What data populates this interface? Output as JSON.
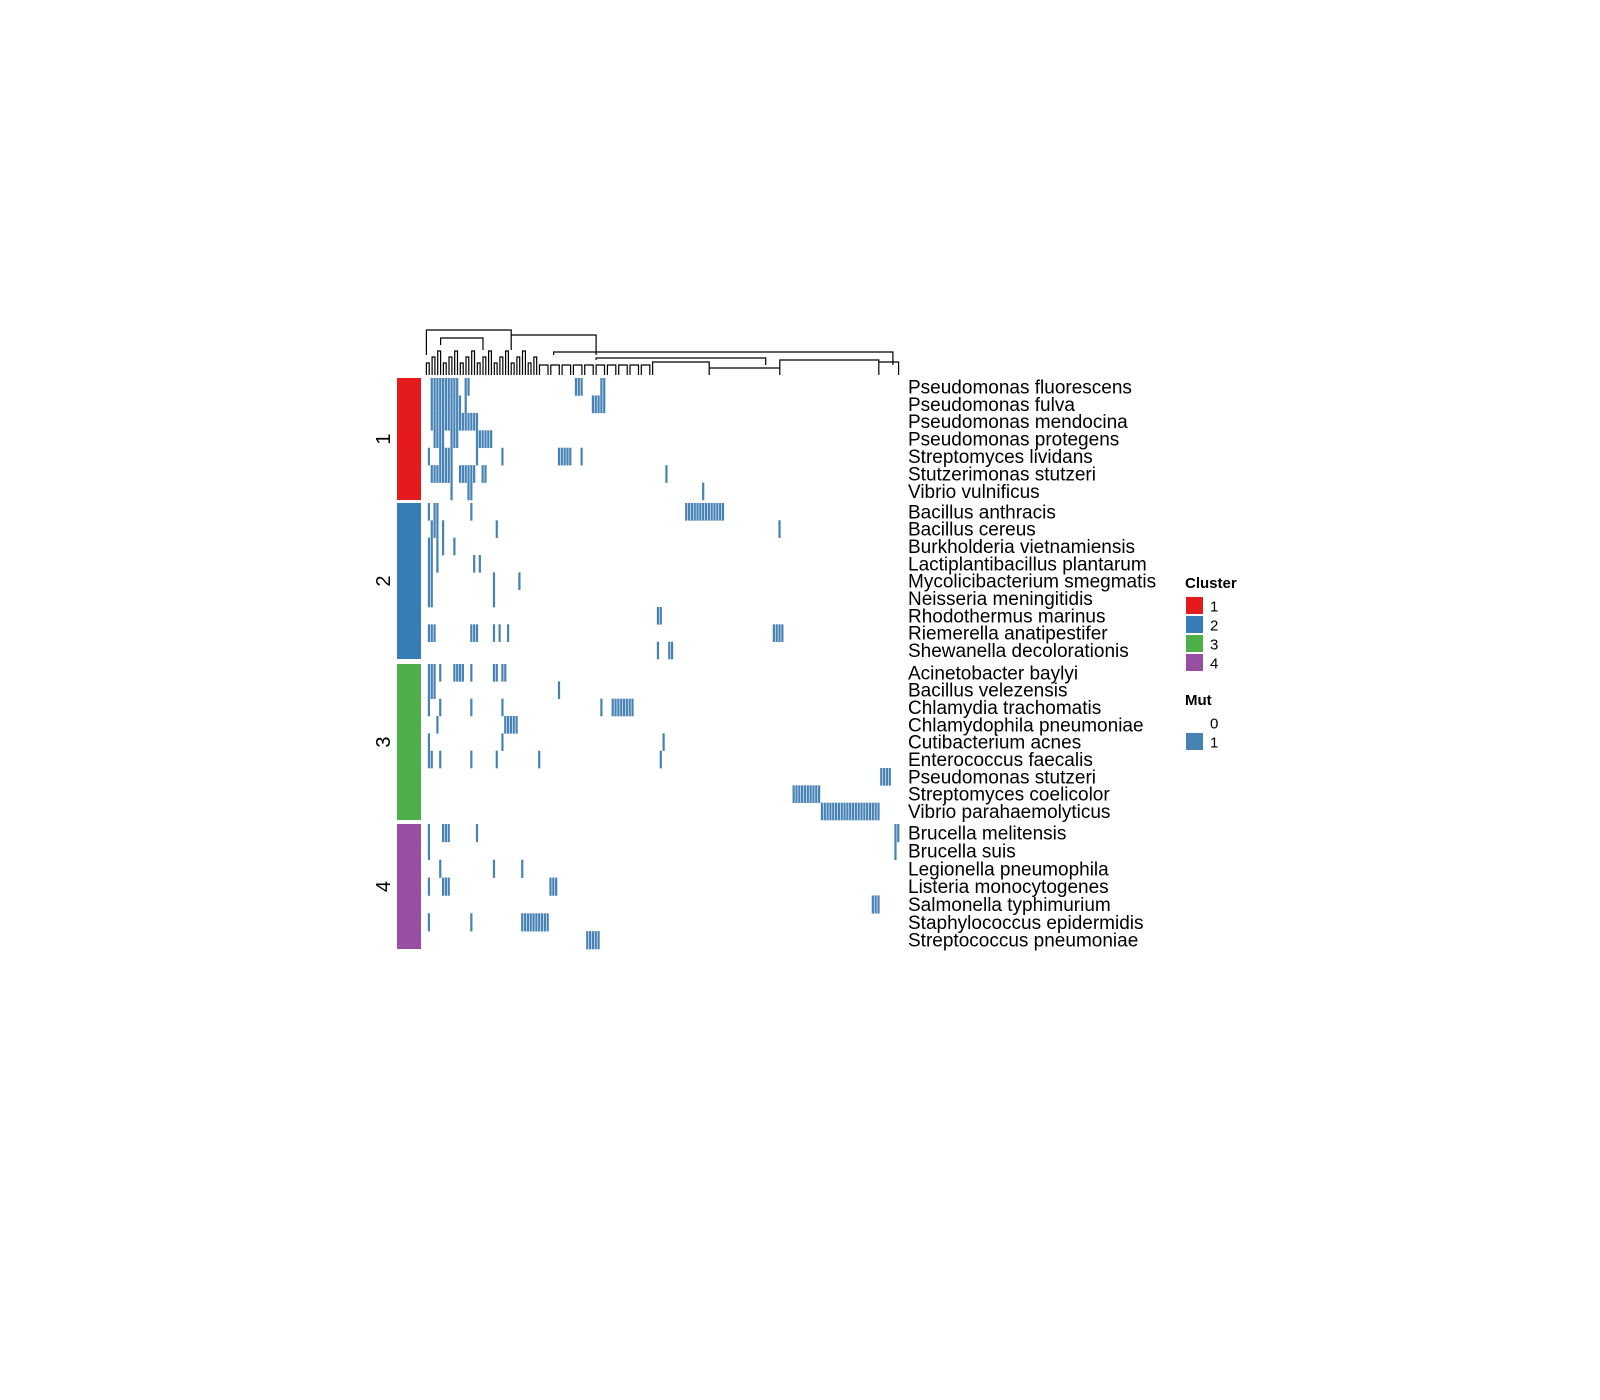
{
  "chart_data": {
    "type": "heatmap",
    "rows": [
      {
        "name": "Pseudomonas fluorescens",
        "cluster": 1,
        "cells": [
          2,
          3,
          4,
          5,
          6,
          7,
          8,
          9,
          10,
          11,
          14,
          15,
          53,
          54,
          55,
          62,
          63
        ]
      },
      {
        "name": "Pseudomonas fulva",
        "cluster": 1,
        "cells": [
          2,
          3,
          4,
          5,
          6,
          7,
          8,
          9,
          10,
          11,
          12,
          14,
          59,
          60,
          61,
          62,
          63
        ]
      },
      {
        "name": "Pseudomonas mendocina",
        "cluster": 1,
        "cells": [
          2,
          3,
          4,
          5,
          6,
          7,
          8,
          9,
          10,
          11,
          12,
          13,
          14,
          15,
          16,
          17,
          18
        ]
      },
      {
        "name": "Pseudomonas protegens",
        "cluster": 1,
        "cells": [
          3,
          4,
          5,
          6,
          9,
          10,
          11,
          18,
          19,
          20,
          21,
          22,
          23
        ]
      },
      {
        "name": "Streptomyces lividans",
        "cluster": 1,
        "cells": [
          1,
          5,
          6,
          7,
          8,
          9,
          18,
          27,
          47,
          48,
          49,
          50,
          51,
          55
        ]
      },
      {
        "name": "Stutzerimonas stutzeri",
        "cluster": 1,
        "cells": [
          2,
          3,
          4,
          5,
          6,
          7,
          8,
          9,
          12,
          13,
          14,
          15,
          16,
          17,
          20,
          21,
          85
        ]
      },
      {
        "name": "Vibrio vulnificus",
        "cluster": 1,
        "cells": [
          9,
          15,
          16,
          98
        ]
      },
      {
        "name": "Bacillus anthracis",
        "cluster": 2,
        "cells": [
          1,
          3,
          4,
          16,
          92,
          93,
          94,
          95,
          96,
          97,
          98,
          99,
          100,
          101,
          102,
          103,
          104,
          105
        ]
      },
      {
        "name": "Bacillus cereus",
        "cluster": 2,
        "cells": [
          2,
          3,
          4,
          6,
          25,
          125
        ]
      },
      {
        "name": "Burkholderia vietnamiensis",
        "cluster": 2,
        "cells": [
          1,
          2,
          4,
          6,
          10
        ]
      },
      {
        "name": "Lactiplantibacillus plantarum",
        "cluster": 2,
        "cells": [
          1,
          2,
          4,
          17,
          19
        ]
      },
      {
        "name": "Mycolicibacterium smegmatis",
        "cluster": 2,
        "cells": [
          1,
          2,
          24,
          33
        ]
      },
      {
        "name": "Neisseria meningitidis",
        "cluster": 2,
        "cells": [
          1,
          2,
          24
        ]
      },
      {
        "name": "Rhodothermus marinus",
        "cluster": 2,
        "cells": [
          82,
          83
        ]
      },
      {
        "name": "Riemerella anatipestifer",
        "cluster": 2,
        "cells": [
          1,
          2,
          3,
          16,
          17,
          18,
          24,
          26,
          29,
          123,
          124,
          125,
          126
        ]
      },
      {
        "name": "Shewanella decolorationis",
        "cluster": 2,
        "cells": [
          82,
          86,
          87
        ]
      },
      {
        "name": "Acinetobacter baylyi",
        "cluster": 3,
        "cells": [
          1,
          2,
          3,
          5,
          10,
          11,
          12,
          13,
          16,
          24,
          25,
          27,
          28
        ]
      },
      {
        "name": "Bacillus velezensis",
        "cluster": 3,
        "cells": [
          1,
          2,
          3,
          47
        ]
      },
      {
        "name": "Chlamydia trachomatis",
        "cluster": 3,
        "cells": [
          1,
          5,
          16,
          27,
          62,
          66,
          67,
          68,
          69,
          70,
          71,
          72,
          73
        ]
      },
      {
        "name": "Chlamydophila pneumoniae",
        "cluster": 3,
        "cells": [
          4,
          28,
          29,
          30,
          31,
          32
        ]
      },
      {
        "name": "Cutibacterium acnes",
        "cluster": 3,
        "cells": [
          1,
          27,
          84
        ]
      },
      {
        "name": "Enterococcus faecalis",
        "cluster": 3,
        "cells": [
          1,
          2,
          5,
          16,
          25,
          40,
          83
        ]
      },
      {
        "name": "Pseudomonas stutzeri",
        "cluster": 3,
        "cells": [
          161,
          162,
          163,
          164
        ]
      },
      {
        "name": "Streptomyces coelicolor",
        "cluster": 3,
        "cells": [
          130,
          131,
          132,
          133,
          134,
          135,
          136,
          137,
          138,
          139
        ]
      },
      {
        "name": "Vibrio parahaemolyticus",
        "cluster": 3,
        "cells": [
          140,
          141,
          142,
          143,
          144,
          145,
          146,
          147,
          148,
          149,
          150,
          151,
          152,
          153,
          154,
          155,
          156,
          157,
          158,
          159,
          160
        ]
      },
      {
        "name": "Brucella melitensis",
        "cluster": 4,
        "cells": [
          1,
          6,
          7,
          8,
          18,
          166,
          167
        ]
      },
      {
        "name": "Brucella suis",
        "cluster": 4,
        "cells": [
          1,
          166
        ]
      },
      {
        "name": "Legionella pneumophila",
        "cluster": 4,
        "cells": [
          5,
          24,
          34
        ]
      },
      {
        "name": "Listeria monocytogenes",
        "cluster": 4,
        "cells": [
          1,
          6,
          7,
          8,
          44,
          45,
          46
        ]
      },
      {
        "name": "Salmonella typhimurium",
        "cluster": 4,
        "cells": [
          158,
          159,
          160
        ]
      },
      {
        "name": "Staphylococcus epidermidis",
        "cluster": 4,
        "cells": [
          1,
          16,
          34,
          35,
          36,
          37,
          38,
          39,
          40,
          41,
          42,
          43
        ]
      },
      {
        "name": "Streptococcus pneumoniae",
        "cluster": 4,
        "cells": [
          57,
          58,
          59,
          60,
          61
        ]
      }
    ],
    "n_columns": 168,
    "column_labels": [],
    "cluster_labels": [
      "1",
      "2",
      "3",
      "4"
    ],
    "legend": {
      "cluster": {
        "title": "Cluster",
        "entries": [
          {
            "label": "1",
            "color": "#E41A1C"
          },
          {
            "label": "2",
            "color": "#377EB8"
          },
          {
            "label": "3",
            "color": "#4DAF4A"
          },
          {
            "label": "4",
            "color": "#984EA3"
          }
        ]
      },
      "mut": {
        "title": "Mut",
        "entries": [
          {
            "label": "0",
            "color": "#FFFFFF"
          },
          {
            "label": "1",
            "color": "#4682B4"
          }
        ]
      }
    },
    "legend_position": "right",
    "column_dendrogram": true,
    "colors": {
      "mut1": "#4682B4",
      "mut0": "#FFFFFF",
      "cluster": [
        "#E41A1C",
        "#377EB8",
        "#4DAF4A",
        "#984EA3"
      ]
    }
  }
}
